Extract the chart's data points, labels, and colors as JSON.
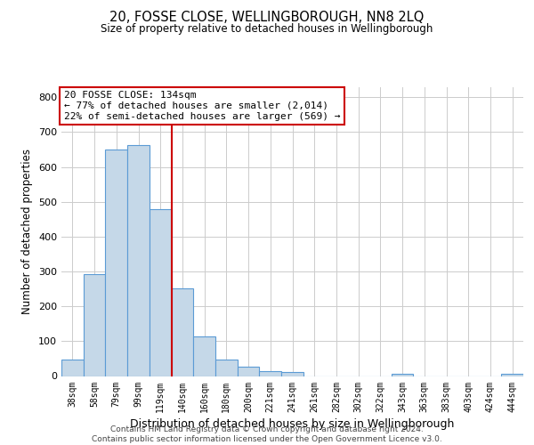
{
  "title": "20, FOSSE CLOSE, WELLINGBOROUGH, NN8 2LQ",
  "subtitle": "Size of property relative to detached houses in Wellingborough",
  "xlabel": "Distribution of detached houses by size in Wellingborough",
  "ylabel": "Number of detached properties",
  "bar_labels": [
    "38sqm",
    "58sqm",
    "79sqm",
    "99sqm",
    "119sqm",
    "140sqm",
    "160sqm",
    "180sqm",
    "200sqm",
    "221sqm",
    "241sqm",
    "261sqm",
    "282sqm",
    "302sqm",
    "322sqm",
    "343sqm",
    "363sqm",
    "383sqm",
    "403sqm",
    "424sqm",
    "444sqm"
  ],
  "bar_values": [
    47,
    293,
    651,
    662,
    480,
    251,
    113,
    48,
    28,
    15,
    12,
    0,
    0,
    0,
    0,
    7,
    0,
    0,
    0,
    0,
    7
  ],
  "bar_color": "#c5d8e8",
  "bar_edge_color": "#5b9bd5",
  "vline_x_idx": 4.5,
  "vline_color": "#cc0000",
  "annotation_line1": "20 FOSSE CLOSE: 134sqm",
  "annotation_line2": "← 77% of detached houses are smaller (2,014)",
  "annotation_line3": "22% of semi-detached houses are larger (569) →",
  "annotation_box_color": "#cc0000",
  "ylim": [
    0,
    830
  ],
  "yticks": [
    0,
    100,
    200,
    300,
    400,
    500,
    600,
    700,
    800
  ],
  "footer_line1": "Contains HM Land Registry data © Crown copyright and database right 2024.",
  "footer_line2": "Contains public sector information licensed under the Open Government Licence v3.0.",
  "bg_color": "#ffffff",
  "grid_color": "#cccccc"
}
